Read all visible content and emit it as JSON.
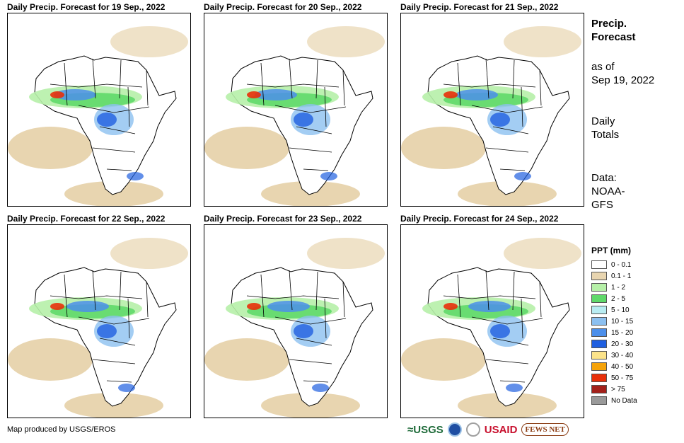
{
  "panels": [
    {
      "title": "Daily Precip. Forecast for 19 Sep., 2022"
    },
    {
      "title": "Daily Precip. Forecast for 20 Sep., 2022"
    },
    {
      "title": "Daily Precip. Forecast for 21 Sep., 2022"
    },
    {
      "title": "Daily Precip. Forecast for 22 Sep., 2022"
    },
    {
      "title": "Daily Precip. Forecast for 23 Sep., 2022"
    },
    {
      "title": "Daily Precip. Forecast for 24 Sep., 2022"
    }
  ],
  "sidebar": {
    "heading_line1": "Precip.",
    "heading_line2": "Forecast",
    "asof_line1": "as of",
    "asof_line2": "Sep 19, 2022",
    "totals_line1": "Daily",
    "totals_line2": "Totals",
    "data_line1": "Data:",
    "data_line2": "NOAA-",
    "data_line3": "GFS"
  },
  "legend": {
    "title": "PPT (mm)",
    "items": [
      {
        "label": "0 - 0.1",
        "color": "#ffffff"
      },
      {
        "label": "0.1 - 1",
        "color": "#e8d5b0"
      },
      {
        "label": "1 - 2",
        "color": "#b6f0a8"
      },
      {
        "label": "2 - 5",
        "color": "#5fd96a"
      },
      {
        "label": "5 - 10",
        "color": "#b8ecf2"
      },
      {
        "label": "10 - 15",
        "color": "#8cc0f0"
      },
      {
        "label": "15 - 20",
        "color": "#4c8fea"
      },
      {
        "label": "20 - 30",
        "color": "#1f5fe0"
      },
      {
        "label": "30 - 40",
        "color": "#fbe38a"
      },
      {
        "label": "40 - 50",
        "color": "#f5a30a"
      },
      {
        "label": "50 - 75",
        "color": "#e8300a"
      },
      {
        "label": "> 75",
        "color": "#a3201a"
      },
      {
        "label": "No Data",
        "color": "#9a9a9a"
      }
    ]
  },
  "footer": {
    "credit": "Map produced by USGS/EROS",
    "logos": {
      "usgs": "≈USGS",
      "usaid": "USAID",
      "fews": "FEWS NET"
    }
  }
}
